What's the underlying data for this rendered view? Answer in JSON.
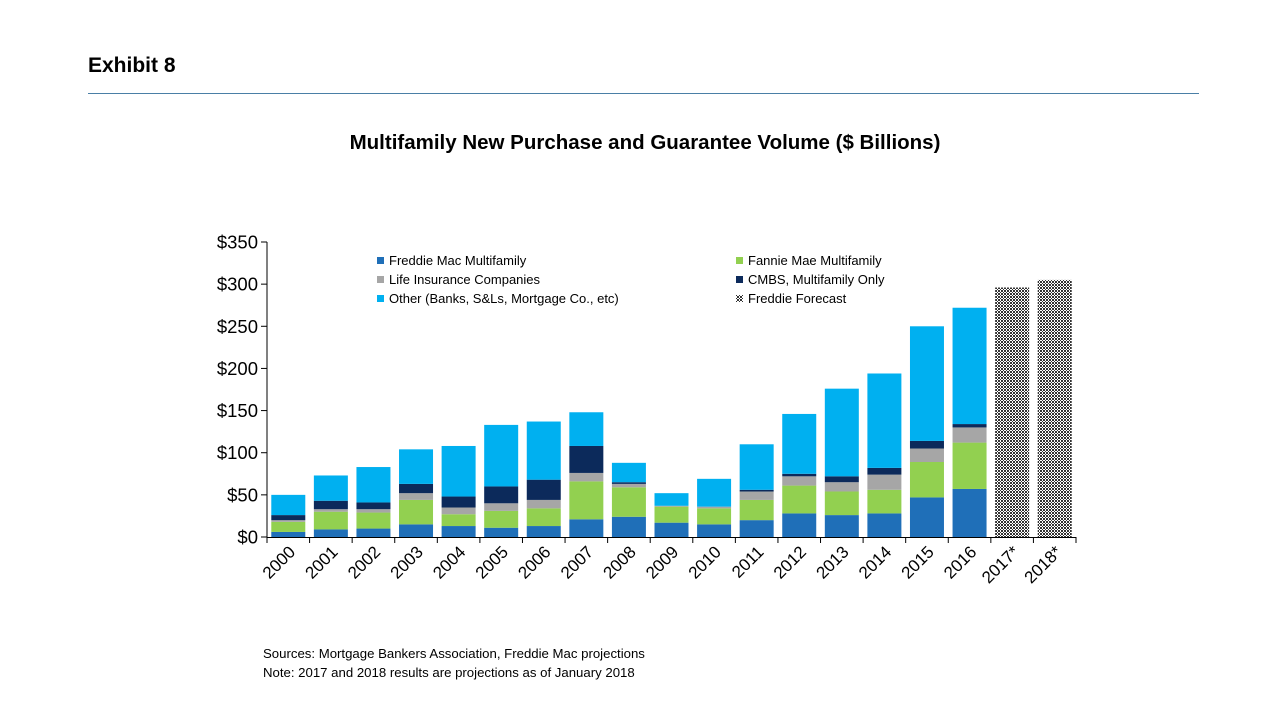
{
  "header": {
    "exhibit_label": "Exhibit 8"
  },
  "footer": {
    "sources": "Sources: Mortgage Bankers Association, Freddie Mac projections",
    "note": "Note: 2017 and 2018 results are projections as of January 2018"
  },
  "chart_data": {
    "type": "bar",
    "stacked": true,
    "title": "Multifamily New Purchase and Guarantee Volume ($ Billions)",
    "xlabel": "",
    "ylabel": "",
    "ylim": [
      0,
      350
    ],
    "yticks": [
      0,
      50,
      100,
      150,
      200,
      250,
      300,
      350
    ],
    "ytick_labels": [
      "$0",
      "$50",
      "$100",
      "$150",
      "$200",
      "$250",
      "$300",
      "$350"
    ],
    "grid": false,
    "legend_position": "top",
    "categories": [
      "2000",
      "2001",
      "2002",
      "2003",
      "2004",
      "2005",
      "2006",
      "2007",
      "2008",
      "2009",
      "2010",
      "2011",
      "2012",
      "2013",
      "2014",
      "2015",
      "2016",
      "2017*",
      "2018*"
    ],
    "series": [
      {
        "name": "Freddie Mac Multifamily",
        "color": "#1f6fb8",
        "values": [
          6,
          9,
          10,
          15,
          13,
          11,
          13,
          21,
          24,
          17,
          15,
          20,
          28,
          26,
          28,
          47,
          57,
          null,
          null
        ]
      },
      {
        "name": "Fannie Mae Multifamily",
        "color": "#92d050",
        "values": [
          12,
          21,
          19,
          29,
          14,
          20,
          21,
          45,
          35,
          19,
          19,
          24,
          33,
          28,
          28,
          42,
          55,
          null,
          null
        ]
      },
      {
        "name": "Life Insurance Companies",
        "color": "#a6a6a6",
        "values": [
          2,
          3,
          4,
          8,
          8,
          9,
          10,
          10,
          4,
          1,
          2,
          10,
          11,
          11,
          18,
          16,
          18,
          null,
          null
        ]
      },
      {
        "name": "CMBS, Multifamily Only",
        "color": "#0c2a5b",
        "values": [
          6,
          10,
          8,
          11,
          13,
          20,
          24,
          32,
          2,
          0,
          0,
          2,
          3,
          7,
          8,
          9,
          4,
          null,
          null
        ]
      },
      {
        "name": "Other (Banks, S&Ls, Mortgage Co., etc)",
        "color": "#00b0f0",
        "values": [
          24,
          30,
          42,
          41,
          60,
          73,
          69,
          40,
          23,
          15,
          33,
          54,
          71,
          104,
          112,
          136,
          138,
          null,
          null
        ]
      },
      {
        "name": "Freddie Forecast",
        "pattern": "crosshatch",
        "color": "#444444",
        "values": [
          null,
          null,
          null,
          null,
          null,
          null,
          null,
          null,
          null,
          null,
          null,
          null,
          null,
          null,
          null,
          null,
          null,
          296,
          305
        ]
      }
    ]
  }
}
